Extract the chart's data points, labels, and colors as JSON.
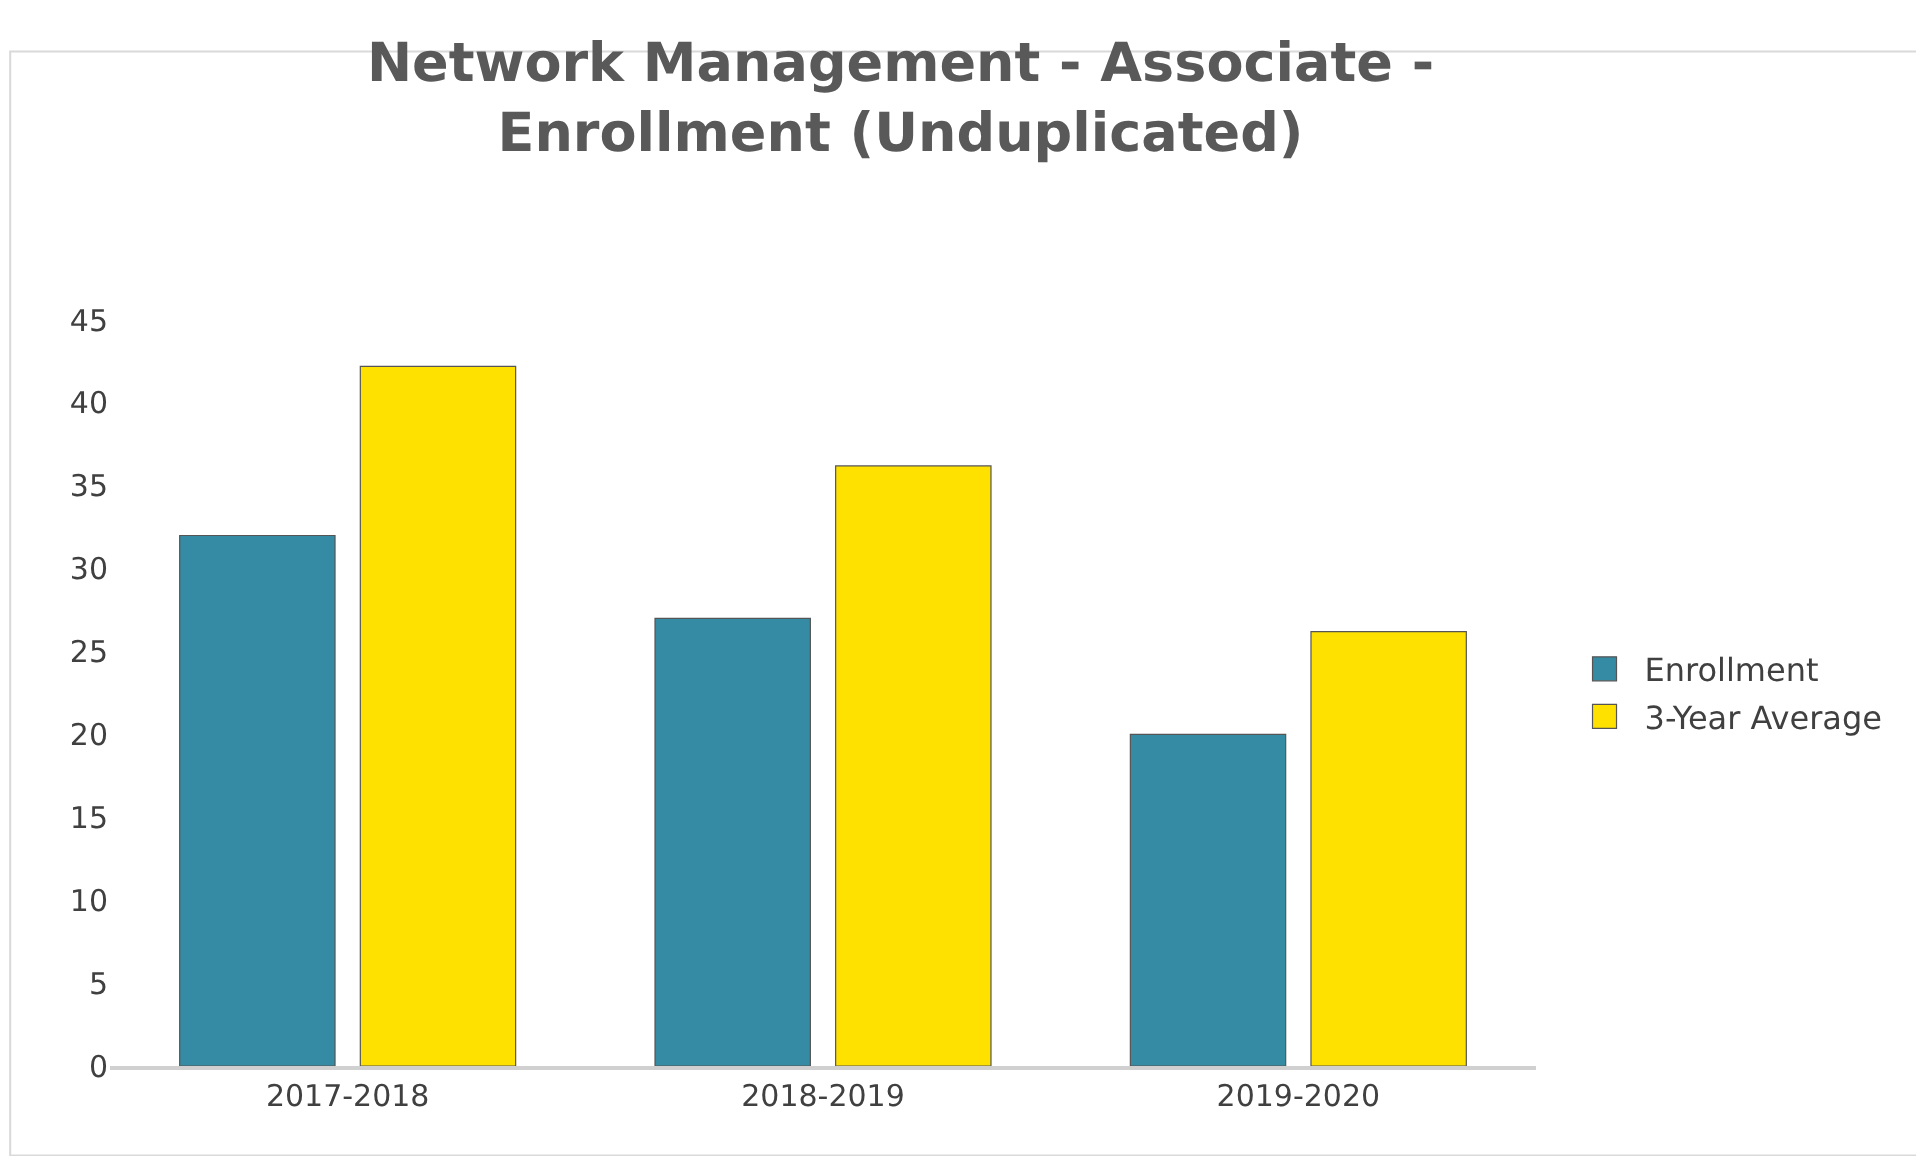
{
  "chart_data": {
    "type": "bar",
    "title": "Network Management - Associate -\nEnrollment (Unduplicated)",
    "categories": [
      "2017-2018",
      "2018-2019",
      "2019-2020"
    ],
    "series": [
      {
        "name": "Enrollment",
        "color": "#358ba3",
        "values": [
          32,
          27,
          20
        ]
      },
      {
        "name": "3-Year Average",
        "color": "#ffe100",
        "values": [
          42.2,
          36.2,
          26.2
        ]
      }
    ],
    "ylim": [
      0,
      45
    ],
    "yticks": [
      0,
      5,
      10,
      15,
      20,
      25,
      30,
      35,
      40,
      45
    ],
    "legend": "right"
  }
}
